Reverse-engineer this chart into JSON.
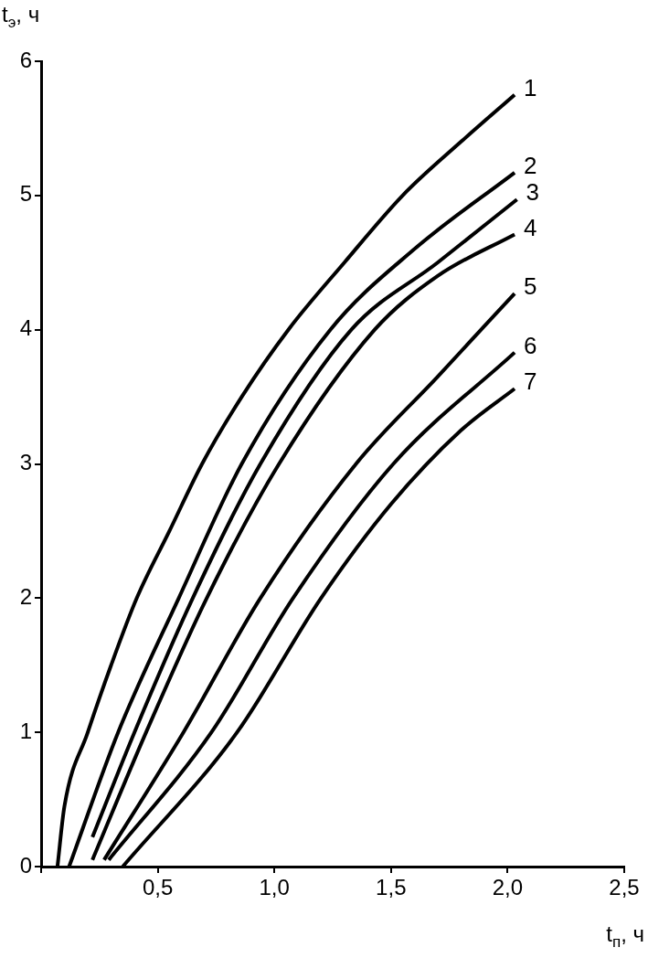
{
  "chart_data": {
    "type": "line",
    "xlabel": "t$_{п}$, ч",
    "ylabel": "t$_{э}$, ч",
    "xlim": [
      0,
      2.5
    ],
    "ylim": [
      0,
      6
    ],
    "xticks": [
      {
        "value": 0,
        "label": null
      },
      {
        "value": 0.5,
        "label": "0,5"
      },
      {
        "value": 1,
        "label": "1,0"
      },
      {
        "value": 1.5,
        "label": "1,5"
      },
      {
        "value": 2,
        "label": "2,0"
      },
      {
        "value": 2.5,
        "label": "2,5"
      }
    ],
    "yticks": [
      0,
      1,
      2,
      3,
      4,
      5,
      6
    ],
    "grid": false,
    "legend": false,
    "marker": "none",
    "line_style": "solid",
    "series": [
      {
        "name": "1",
        "color": "#000000",
        "x": [
          0.07,
          0.1,
          0.2,
          0.3,
          0.41,
          0.55,
          0.69,
          0.86,
          1.06,
          1.3,
          1.55,
          1.8,
          2.03
        ],
        "values": [
          0,
          0.45,
          1.0,
          1.5,
          2,
          2.5,
          3,
          3.5,
          4,
          4.5,
          5,
          5.4,
          5.75
        ]
      },
      {
        "name": "2",
        "color": "#000000",
        "x": [
          0.12,
          0.33,
          0.59,
          0.86,
          1.24,
          1.6,
          2.03
        ],
        "values": [
          0,
          1,
          2,
          3,
          4,
          4.6,
          5.17
        ]
      },
      {
        "name": "3",
        "color": "#000000",
        "x": [
          0.22,
          0.4,
          0.65,
          0.94,
          1.33,
          1.7,
          2.04
        ],
        "values": [
          0.22,
          1,
          2,
          3,
          4,
          4.5,
          4.97
        ]
      },
      {
        "name": "4",
        "color": "#000000",
        "x": [
          0.22,
          0.45,
          0.71,
          1.02,
          1.43,
          1.7,
          2.03
        ],
        "values": [
          0.05,
          1,
          2,
          3,
          4,
          4.4,
          4.71
        ]
      },
      {
        "name": "5",
        "color": "#000000",
        "x": [
          0.27,
          0.61,
          0.94,
          1.35,
          1.7,
          2.03
        ],
        "values": [
          0.05,
          1,
          2,
          3,
          3.65,
          4.27
        ]
      },
      {
        "name": "6",
        "color": "#000000",
        "x": [
          0.29,
          0.73,
          1.08,
          1.51,
          2.03
        ],
        "values": [
          0.05,
          1,
          2,
          3,
          3.83
        ]
      },
      {
        "name": "7",
        "color": "#000000",
        "x": [
          0.35,
          0.84,
          1.2,
          1.5,
          1.8,
          2.03
        ],
        "values": [
          0,
          1,
          2,
          2.7,
          3.25,
          3.56
        ]
      }
    ]
  }
}
